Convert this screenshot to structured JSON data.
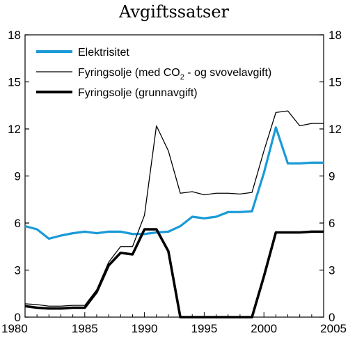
{
  "chart_data": {
    "type": "line",
    "title": "Avgiftssatser",
    "xlabel": "",
    "ylabel": "",
    "xlim": [
      1980,
      2005
    ],
    "ylim": [
      0,
      18
    ],
    "x_ticks": [
      "1980",
      "1985",
      "1990",
      "1995",
      "2000",
      "2005"
    ],
    "y_ticks": [
      "0",
      "3",
      "6",
      "9",
      "12",
      "15",
      "18"
    ],
    "grid": false,
    "legend_position": "top-left",
    "legend": {
      "el": "Elektrisitet",
      "fy_full_prefix": "Fyringsolje (med CO",
      "fy_full_sub": "2",
      "fy_full_suffix": " - og svovelavgift)",
      "fy_base": "Fyringsolje (grunnavgift)"
    },
    "series": [
      {
        "key": "el",
        "name": "Elektrisitet",
        "color": "#1a9ad7",
        "x": [
          1980,
          1981,
          1982,
          1983,
          1984,
          1985,
          1986,
          1987,
          1988,
          1989,
          1990,
          1991,
          1992,
          1993,
          1994,
          1995,
          1996,
          1997,
          1998,
          1999,
          2000,
          2001,
          2002,
          2003,
          2004,
          2005
        ],
        "y": [
          5.8,
          5.6,
          5.0,
          5.2,
          5.35,
          5.45,
          5.35,
          5.45,
          5.45,
          5.3,
          5.3,
          5.4,
          5.45,
          5.8,
          6.4,
          6.3,
          6.4,
          6.7,
          6.7,
          6.75,
          9.2,
          12.1,
          9.8,
          9.8,
          9.85,
          9.85
        ]
      },
      {
        "key": "fy_full",
        "name": "Fyringsolje (med CO2 - og svovelavgift)",
        "color": "#000000",
        "x": [
          1980,
          1981,
          1982,
          1983,
          1984,
          1985,
          1986,
          1987,
          1988,
          1989,
          1990,
          1991,
          1992,
          1993,
          1994,
          1995,
          1996,
          1997,
          1998,
          1999,
          2000,
          2001,
          2002,
          2003,
          2004,
          2005
        ],
        "y": [
          0.85,
          0.8,
          0.7,
          0.7,
          0.75,
          0.75,
          1.75,
          3.5,
          4.5,
          4.5,
          6.5,
          12.2,
          10.6,
          7.9,
          8.0,
          7.8,
          7.9,
          7.9,
          7.85,
          7.95,
          10.6,
          13.05,
          13.15,
          12.2,
          12.35,
          12.35
        ]
      },
      {
        "key": "fy_base",
        "name": "Fyringsolje (grunnavgift)",
        "color": "#000000",
        "x": [
          1980,
          1981,
          1982,
          1983,
          1984,
          1985,
          1986,
          1987,
          1988,
          1989,
          1990,
          1991,
          1992,
          1993,
          1994,
          1995,
          1996,
          1997,
          1998,
          1999,
          2000,
          2001,
          2002,
          2003,
          2004,
          2005
        ],
        "y": [
          0.7,
          0.6,
          0.55,
          0.55,
          0.6,
          0.6,
          1.6,
          3.3,
          4.1,
          4.0,
          5.6,
          5.6,
          4.2,
          0,
          0,
          0,
          0,
          0,
          0,
          0,
          2.6,
          5.4,
          5.4,
          5.4,
          5.45,
          5.45
        ]
      }
    ]
  }
}
